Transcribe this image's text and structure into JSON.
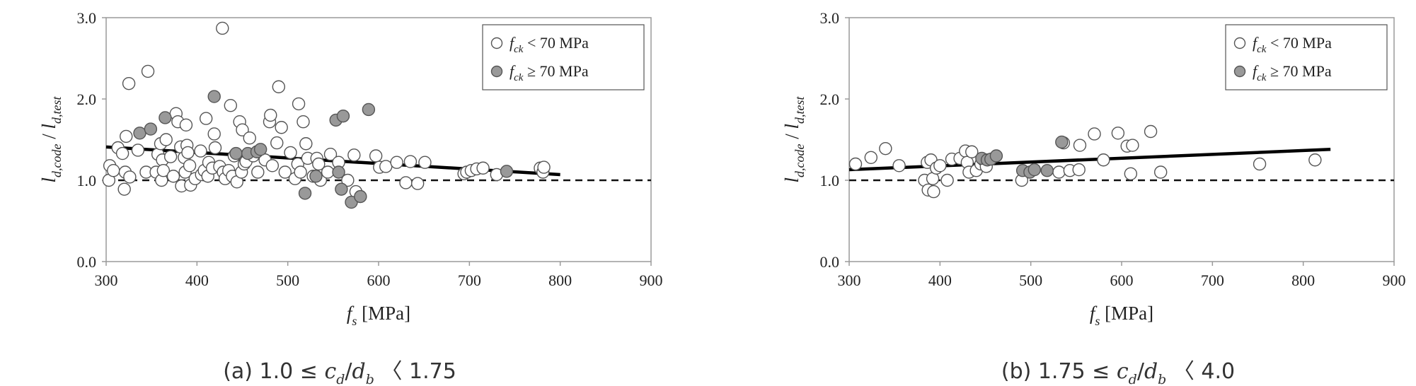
{
  "chart_data": [
    {
      "type": "scatter",
      "caption": "(a) 1.0 ≤ c_d/d_b 〈 1.75",
      "xlabel": "f_s [MPa]",
      "ylabel": "l_d,code / l_d,test",
      "xlim": [
        300,
        900
      ],
      "ylim": [
        0.0,
        3.0
      ],
      "x_ticks": [
        "300",
        "400",
        "500",
        "600",
        "700",
        "800",
        "900"
      ],
      "y_ticks": [
        "0.0",
        "1.0",
        "2.0",
        "3.0"
      ],
      "legend_position": "top-right",
      "reference_line": {
        "y": 1.0,
        "style": "dashed"
      },
      "trend_line": {
        "x": [
          300,
          800
        ],
        "y": [
          1.41,
          1.07
        ]
      },
      "series": [
        {
          "name": "f_ck < 70 MPa",
          "marker": "open-circle",
          "color": "#ffffff",
          "points": [
            [
              303,
              1.0
            ],
            [
              304,
              1.18
            ],
            [
              308,
              1.12
            ],
            [
              313,
              1.4
            ],
            [
              318,
              1.33
            ],
            [
              320,
              0.89
            ],
            [
              321,
              1.1
            ],
            [
              322,
              1.54
            ],
            [
              325,
              2.19
            ],
            [
              326,
              1.04
            ],
            [
              335,
              1.37
            ],
            [
              344,
              1.1
            ],
            [
              346,
              2.34
            ],
            [
              355,
              1.1
            ],
            [
              357,
              1.32
            ],
            [
              360,
              1.45
            ],
            [
              361,
              1.0
            ],
            [
              362,
              1.25
            ],
            [
              363,
              1.12
            ],
            [
              366,
              1.5
            ],
            [
              371,
              1.29
            ],
            [
              374,
              1.05
            ],
            [
              377,
              1.82
            ],
            [
              379,
              1.72
            ],
            [
              382,
              1.41
            ],
            [
              383,
              0.93
            ],
            [
              386,
              1.28
            ],
            [
              387,
              1.1
            ],
            [
              388,
              1.68
            ],
            [
              389,
              1.43
            ],
            [
              390,
              1.34
            ],
            [
              392,
              1.18
            ],
            [
              393,
              0.94
            ],
            [
              398,
              1.02
            ],
            [
              404,
              1.36
            ],
            [
              405,
              1.07
            ],
            [
              408,
              1.12
            ],
            [
              410,
              1.76
            ],
            [
              412,
              1.05
            ],
            [
              413,
              1.22
            ],
            [
              417,
              1.15
            ],
            [
              419,
              1.57
            ],
            [
              420,
              1.4
            ],
            [
              425,
              1.17
            ],
            [
              428,
              2.87
            ],
            [
              429,
              1.1
            ],
            [
              431,
              1.02
            ],
            [
              435,
              1.12
            ],
            [
              437,
              1.92
            ],
            [
              439,
              1.05
            ],
            [
              441,
              1.3
            ],
            [
              444,
              0.98
            ],
            [
              447,
              1.72
            ],
            [
              449,
              1.1
            ],
            [
              450,
              1.62
            ],
            [
              452,
              1.2
            ],
            [
              454,
              1.23
            ],
            [
              458,
              1.52
            ],
            [
              462,
              1.3
            ],
            [
              467,
              1.1
            ],
            [
              475,
              1.25
            ],
            [
              480,
              1.72
            ],
            [
              481,
              1.8
            ],
            [
              483,
              1.18
            ],
            [
              488,
              1.46
            ],
            [
              490,
              2.15
            ],
            [
              493,
              1.65
            ],
            [
              497,
              1.1
            ],
            [
              503,
              1.34
            ],
            [
              508,
              1.02
            ],
            [
              511,
              1.2
            ],
            [
              512,
              1.94
            ],
            [
              514,
              1.1
            ],
            [
              517,
              1.72
            ],
            [
              520,
              1.45
            ],
            [
              522,
              1.27
            ],
            [
              528,
              1.05
            ],
            [
              532,
              1.27
            ],
            [
              534,
              1.2
            ],
            [
              536,
              1.0
            ],
            [
              544,
              1.1
            ],
            [
              547,
              1.32
            ],
            [
              556,
              1.22
            ],
            [
              566,
              1.0
            ],
            [
              573,
              1.31
            ],
            [
              575,
              0.86
            ],
            [
              597,
              1.3
            ],
            [
              601,
              1.16
            ],
            [
              608,
              1.17
            ],
            [
              620,
              1.22
            ],
            [
              630,
              0.97
            ],
            [
              635,
              1.23
            ],
            [
              643,
              0.96
            ],
            [
              651,
              1.22
            ],
            [
              694,
              1.08
            ],
            [
              697,
              1.1
            ],
            [
              702,
              1.12
            ],
            [
              708,
              1.14
            ],
            [
              715,
              1.15
            ],
            [
              730,
              1.07
            ],
            [
              778,
              1.15
            ],
            [
              781,
              1.1
            ],
            [
              782,
              1.16
            ]
          ]
        },
        {
          "name": "f_ck ≥ 70 MPa",
          "marker": "filled-circle",
          "color": "#999999",
          "points": [
            [
              337,
              1.58
            ],
            [
              349,
              1.63
            ],
            [
              365,
              1.77
            ],
            [
              419,
              2.03
            ],
            [
              443,
              1.33
            ],
            [
              456,
              1.33
            ],
            [
              466,
              1.35
            ],
            [
              470,
              1.38
            ],
            [
              519,
              0.84
            ],
            [
              531,
              1.05
            ],
            [
              553,
              1.74
            ],
            [
              556,
              1.1
            ],
            [
              559,
              0.89
            ],
            [
              561,
              1.79
            ],
            [
              570,
              0.73
            ],
            [
              580,
              0.8
            ],
            [
              589,
              1.87
            ],
            [
              741,
              1.11
            ]
          ]
        }
      ]
    },
    {
      "type": "scatter",
      "caption": "(b) 1.75 ≤ c_d/d_b 〈 4.0",
      "xlabel": "f_s [MPa]",
      "ylabel": "l_d,code / l_d,test",
      "xlim": [
        300,
        900
      ],
      "ylim": [
        0.0,
        3.0
      ],
      "x_ticks": [
        "300",
        "400",
        "500",
        "600",
        "700",
        "800",
        "900"
      ],
      "y_ticks": [
        "0.0",
        "1.0",
        "2.0",
        "3.0"
      ],
      "legend_position": "top-right",
      "reference_line": {
        "y": 1.0,
        "style": "dashed"
      },
      "trend_line": {
        "x": [
          300,
          830
        ],
        "y": [
          1.13,
          1.38
        ]
      },
      "series": [
        {
          "name": "f_ck < 70 MPa",
          "marker": "open-circle",
          "color": "#ffffff",
          "points": [
            [
              307,
              1.2
            ],
            [
              324,
              1.28
            ],
            [
              340,
              1.39
            ],
            [
              355,
              1.18
            ],
            [
              383,
              1.0
            ],
            [
              386,
              1.22
            ],
            [
              387,
              0.88
            ],
            [
              390,
              1.25
            ],
            [
              392,
              1.02
            ],
            [
              393,
              0.86
            ],
            [
              396,
              1.15
            ],
            [
              400,
              1.18
            ],
            [
              408,
              1.0
            ],
            [
              413,
              1.26
            ],
            [
              422,
              1.27
            ],
            [
              428,
              1.36
            ],
            [
              430,
              1.22
            ],
            [
              432,
              1.1
            ],
            [
              435,
              1.35
            ],
            [
              440,
              1.12
            ],
            [
              445,
              1.2
            ],
            [
              448,
              1.25
            ],
            [
              451,
              1.17
            ],
            [
              490,
              1.0
            ],
            [
              531,
              1.1
            ],
            [
              536,
              1.46
            ],
            [
              543,
              1.12
            ],
            [
              553,
              1.13
            ],
            [
              554,
              1.43
            ],
            [
              570,
              1.57
            ],
            [
              580,
              1.25
            ],
            [
              596,
              1.58
            ],
            [
              606,
              1.42
            ],
            [
              610,
              1.08
            ],
            [
              612,
              1.43
            ],
            [
              632,
              1.6
            ],
            [
              643,
              1.1
            ],
            [
              752,
              1.2
            ],
            [
              813,
              1.25
            ]
          ]
        },
        {
          "name": "f_ck ≥ 70 MPa",
          "marker": "filled-circle",
          "color": "#999999",
          "points": [
            [
              446,
              1.27
            ],
            [
              452,
              1.25
            ],
            [
              456,
              1.26
            ],
            [
              462,
              1.3
            ],
            [
              491,
              1.12
            ],
            [
              499,
              1.1
            ],
            [
              504,
              1.13
            ],
            [
              518,
              1.12
            ],
            [
              534,
              1.47
            ]
          ]
        }
      ]
    }
  ]
}
